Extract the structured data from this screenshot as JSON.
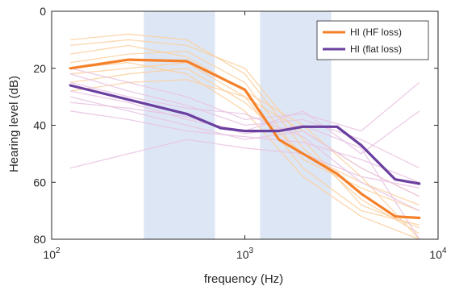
{
  "chart_data": {
    "type": "line",
    "title": "",
    "xlabel": "frequency (Hz)",
    "ylabel": "Hearing level (dB)",
    "x_scale": "log",
    "xlim": [
      100,
      10000
    ],
    "ylim": [
      0,
      80
    ],
    "y_reversed": true,
    "grid": false,
    "legend_position": "top-right",
    "x_ticks": [
      {
        "value": 100,
        "base": "10",
        "exp": "2"
      },
      {
        "value": 1000,
        "base": "10",
        "exp": "3"
      },
      {
        "value": 10000,
        "base": "10",
        "exp": "4"
      }
    ],
    "y_ticks": [
      {
        "value": 0,
        "label": "0"
      },
      {
        "value": 20,
        "label": "20"
      },
      {
        "value": 40,
        "label": "40"
      },
      {
        "value": 60,
        "label": "60"
      },
      {
        "value": 80,
        "label": "80"
      }
    ],
    "shaded_bands": [
      {
        "x": [
          300,
          700
        ],
        "color": "#dde6f5"
      },
      {
        "x": [
          1200,
          2800
        ],
        "color": "#dde6f5"
      }
    ],
    "series": [
      {
        "name": "HI (HF loss)",
        "color": "#f5802a",
        "points": [
          [
            125,
            20
          ],
          [
            250,
            17
          ],
          [
            500,
            17.5
          ],
          [
            1000,
            27.5
          ],
          [
            1500,
            45
          ],
          [
            3000,
            57
          ],
          [
            4000,
            64
          ],
          [
            6000,
            72
          ],
          [
            8000,
            72.5
          ]
        ]
      },
      {
        "name": "HI (flat loss)",
        "color": "#6a3fa0",
        "points": [
          [
            125,
            26
          ],
          [
            250,
            31
          ],
          [
            500,
            36
          ],
          [
            750,
            41
          ],
          [
            1000,
            42
          ],
          [
            1500,
            42
          ],
          [
            2000,
            40.5
          ],
          [
            3000,
            40.5
          ],
          [
            4000,
            47
          ],
          [
            6000,
            59
          ],
          [
            8000,
            60.5
          ]
        ]
      }
    ],
    "individual_lines": [
      {
        "color": "#fbcf9e",
        "points": [
          [
            125,
            10
          ],
          [
            250,
            8
          ],
          [
            500,
            10
          ],
          [
            1000,
            22
          ],
          [
            2000,
            48
          ],
          [
            4000,
            66
          ],
          [
            8000,
            78
          ]
        ]
      },
      {
        "color": "#fbcf9e",
        "points": [
          [
            125,
            18
          ],
          [
            250,
            15
          ],
          [
            500,
            14
          ],
          [
            1000,
            25
          ],
          [
            2000,
            52
          ],
          [
            4000,
            62
          ],
          [
            8000,
            70
          ]
        ]
      },
      {
        "color": "#fbcf9e",
        "points": [
          [
            125,
            22
          ],
          [
            250,
            20
          ],
          [
            500,
            18
          ],
          [
            1000,
            30
          ],
          [
            2000,
            55
          ],
          [
            4000,
            70
          ],
          [
            8000,
            75
          ]
        ]
      },
      {
        "color": "#fbcf9e",
        "points": [
          [
            125,
            15
          ],
          [
            250,
            12
          ],
          [
            500,
            16
          ],
          [
            1000,
            28
          ],
          [
            2000,
            40
          ],
          [
            4000,
            58
          ],
          [
            8000,
            80
          ]
        ]
      },
      {
        "color": "#fbcf9e",
        "points": [
          [
            125,
            25
          ],
          [
            250,
            22
          ],
          [
            500,
            20
          ],
          [
            1000,
            32
          ],
          [
            2000,
            50
          ],
          [
            4000,
            60
          ],
          [
            8000,
            68
          ]
        ]
      },
      {
        "color": "#fbcf9e",
        "points": [
          [
            125,
            12
          ],
          [
            250,
            10
          ],
          [
            500,
            12
          ],
          [
            1000,
            20
          ],
          [
            2000,
            45
          ],
          [
            4000,
            68
          ],
          [
            8000,
            76
          ]
        ]
      },
      {
        "color": "#fbcf9e",
        "points": [
          [
            125,
            20
          ],
          [
            250,
            18
          ],
          [
            500,
            22
          ],
          [
            1000,
            35
          ],
          [
            2000,
            58
          ],
          [
            4000,
            72
          ],
          [
            8000,
            80
          ]
        ]
      },
      {
        "color": "#fbcf9e",
        "points": [
          [
            125,
            28
          ],
          [
            250,
            25
          ],
          [
            500,
            24
          ],
          [
            1000,
            30
          ],
          [
            2000,
            42
          ],
          [
            4000,
            55
          ],
          [
            8000,
            65
          ]
        ]
      },
      {
        "color": "#e9c3e2",
        "points": [
          [
            125,
            30
          ],
          [
            250,
            35
          ],
          [
            500,
            40
          ],
          [
            1000,
            45
          ],
          [
            2000,
            42
          ],
          [
            4000,
            55
          ],
          [
            8000,
            65
          ]
        ]
      },
      {
        "color": "#e9c3e2",
        "points": [
          [
            125,
            22
          ],
          [
            250,
            28
          ],
          [
            500,
            33
          ],
          [
            1000,
            40
          ],
          [
            2000,
            38
          ],
          [
            4000,
            45
          ],
          [
            8000,
            55
          ]
        ]
      },
      {
        "color": "#e9c3e2",
        "points": [
          [
            125,
            35
          ],
          [
            250,
            38
          ],
          [
            500,
            42
          ],
          [
            1000,
            44
          ],
          [
            2000,
            46
          ],
          [
            4000,
            52
          ],
          [
            8000,
            60
          ]
        ]
      },
      {
        "color": "#e9c3e2",
        "points": [
          [
            125,
            20
          ],
          [
            250,
            25
          ],
          [
            500,
            30
          ],
          [
            1000,
            38
          ],
          [
            2000,
            36
          ],
          [
            4000,
            42
          ],
          [
            8000,
            25
          ]
        ]
      },
      {
        "color": "#e9c3e2",
        "points": [
          [
            125,
            55
          ],
          [
            250,
            50
          ],
          [
            500,
            45
          ],
          [
            1000,
            48
          ],
          [
            2000,
            50
          ],
          [
            4000,
            58
          ],
          [
            8000,
            62
          ]
        ]
      },
      {
        "color": "#e9c3e2",
        "points": [
          [
            125,
            28
          ],
          [
            250,
            32
          ],
          [
            500,
            38
          ],
          [
            1000,
            42
          ],
          [
            2000,
            35
          ],
          [
            4000,
            50
          ],
          [
            8000,
            35
          ]
        ]
      },
      {
        "color": "#e9c3e2",
        "points": [
          [
            125,
            25
          ],
          [
            250,
            30
          ],
          [
            500,
            34
          ],
          [
            1000,
            36
          ],
          [
            2000,
            44
          ],
          [
            4000,
            60
          ],
          [
            8000,
            70
          ]
        ]
      },
      {
        "color": "#e9c3e2",
        "points": [
          [
            125,
            32
          ],
          [
            250,
            34
          ],
          [
            500,
            37
          ],
          [
            1000,
            43
          ],
          [
            2000,
            40
          ],
          [
            4000,
            48
          ],
          [
            8000,
            80
          ]
        ]
      }
    ]
  }
}
